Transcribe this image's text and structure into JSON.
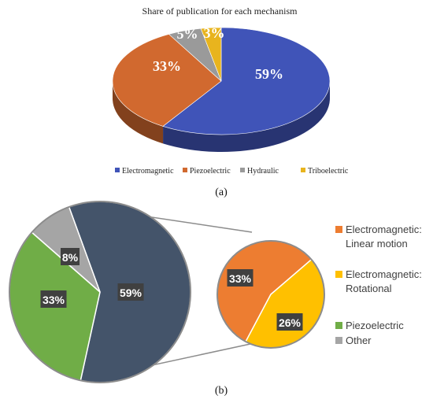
{
  "chart_data": [
    {
      "type": "pie",
      "style": "3d",
      "title": "Share of publication  for each mechanism",
      "categories": [
        "Electromagnetic",
        "Piezoelectric",
        "Hydraulic",
        "Triboelectric"
      ],
      "values": [
        59,
        33,
        5,
        3
      ],
      "labels": [
        "59%",
        "33%",
        "5%",
        "3%"
      ],
      "colors": [
        "#4054b8",
        "#d1692f",
        "#9a9a9a",
        "#e8b41e"
      ],
      "legend_position": "bottom",
      "caption": "(a)"
    },
    {
      "type": "pie",
      "style": "pie-of-pie",
      "categories": [
        "Electromagnetic",
        "Piezoelectric",
        "Other"
      ],
      "values": [
        59,
        33,
        8
      ],
      "labels": [
        "59%",
        "33%",
        "8%"
      ],
      "colors": [
        "#44546a",
        "#70ad47",
        "#a5a5a5"
      ],
      "secondary": {
        "categories": [
          "Electromagnetic: Linear motion",
          "Electromagnetic: Rotational"
        ],
        "values": [
          33,
          26
        ],
        "labels": [
          "33%",
          "26%"
        ],
        "colors": [
          "#ed7d31",
          "#ffc000"
        ]
      },
      "legend": [
        {
          "line1": "Electromagnetic:",
          "line2": "Linear motion",
          "color": "#ed7d31"
        },
        {
          "line1": "Electromagnetic:",
          "line2": "Rotational",
          "color": "#ffc000"
        },
        {
          "line1": "Piezoelectric",
          "line2": "",
          "color": "#70ad47"
        },
        {
          "line1": "Other",
          "line2": "",
          "color": "#a5a5a5"
        }
      ],
      "legend_position": "right",
      "caption": "(b)"
    }
  ]
}
